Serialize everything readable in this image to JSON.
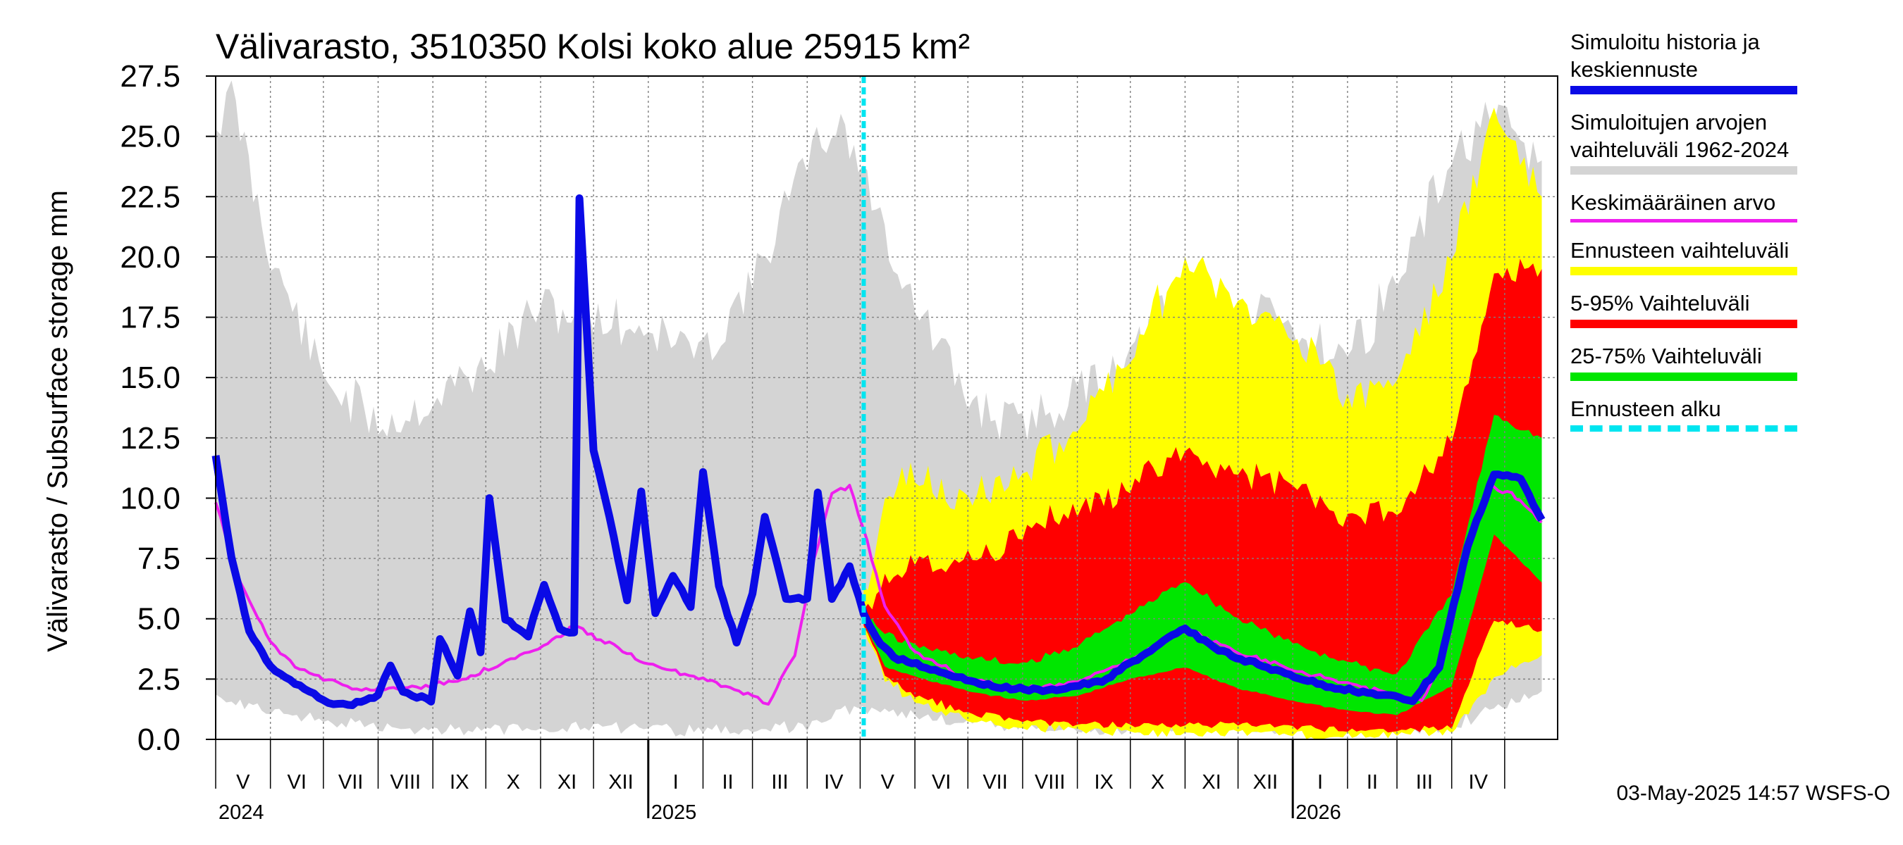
{
  "chart_data": {
    "type": "area",
    "title": "Välivarasto, 3510350 Kolsi koko alue 25915 km²",
    "ylabel": "Välivarasto / Subsurface storage  mm",
    "ylim": [
      0.0,
      27.5
    ],
    "yticks": [
      "0.0",
      "2.5",
      "5.0",
      "7.5",
      "10.0",
      "12.5",
      "15.0",
      "17.5",
      "20.0",
      "22.5",
      "25.0",
      "27.5"
    ],
    "x_range": [
      "2024-05-01",
      "2026-05-31"
    ],
    "forecast_start": "2025-05-03",
    "month_labels": [
      "V",
      "VI",
      "VII",
      "VIII",
      "IX",
      "X",
      "XI",
      "XII",
      "I",
      "II",
      "III",
      "IV",
      "V",
      "VI",
      "VII",
      "VIII",
      "IX",
      "X",
      "XI",
      "XII",
      "I",
      "II",
      "III",
      "IV"
    ],
    "year_labels": [
      {
        "date": "2024-05-01",
        "label": "2024"
      },
      {
        "date": "2025-01-01",
        "label": "2025"
      },
      {
        "date": "2026-01-01",
        "label": "2026"
      }
    ],
    "grid": true,
    "legend_position": "right",
    "colors": {
      "history": "#0a0ae6",
      "range_hist": "#d4d4d4",
      "mean": "#ee1fee",
      "forecast_range": "#ffff00",
      "p5_95": "#ff0000",
      "p25_75": "#00e600",
      "forecast_start": "#00e5f0"
    },
    "series": [
      {
        "name": "Simuloitu historia ja keskiennuste",
        "key": "history",
        "points": [
          [
            "2024-05-01",
            11.8
          ],
          [
            "2024-05-10",
            7.5
          ],
          [
            "2024-05-20",
            4.5
          ],
          [
            "2024-06-01",
            3.0
          ],
          [
            "2024-06-15",
            2.3
          ],
          [
            "2024-07-01",
            1.6
          ],
          [
            "2024-07-15",
            1.4
          ],
          [
            "2024-08-01",
            1.8
          ],
          [
            "2024-08-08",
            3.1
          ],
          [
            "2024-08-15",
            2.0
          ],
          [
            "2024-08-31",
            1.6
          ],
          [
            "2024-09-05",
            4.2
          ],
          [
            "2024-09-15",
            2.6
          ],
          [
            "2024-09-22",
            5.3
          ],
          [
            "2024-09-28",
            3.6
          ],
          [
            "2024-10-03",
            10.0
          ],
          [
            "2024-10-12",
            5.0
          ],
          [
            "2024-10-25",
            4.3
          ],
          [
            "2024-11-03",
            6.4
          ],
          [
            "2024-11-12",
            4.6
          ],
          [
            "2024-11-20",
            4.4
          ],
          [
            "2024-11-23",
            22.4
          ],
          [
            "2024-12-01",
            12.0
          ],
          [
            "2024-12-10",
            9.2
          ],
          [
            "2024-12-20",
            5.8
          ],
          [
            "2024-12-28",
            10.3
          ],
          [
            "2025-01-05",
            5.2
          ],
          [
            "2025-01-15",
            6.8
          ],
          [
            "2025-01-25",
            5.5
          ],
          [
            "2025-02-01",
            11.1
          ],
          [
            "2025-02-10",
            6.4
          ],
          [
            "2025-02-20",
            4.0
          ],
          [
            "2025-03-01",
            6.0
          ],
          [
            "2025-03-08",
            9.2
          ],
          [
            "2025-03-20",
            5.8
          ],
          [
            "2025-04-01",
            5.8
          ],
          [
            "2025-04-07",
            10.2
          ],
          [
            "2025-04-15",
            5.8
          ],
          [
            "2025-04-25",
            7.2
          ],
          [
            "2025-05-03",
            5.2
          ],
          [
            "2025-05-10",
            4.2
          ],
          [
            "2025-05-20",
            3.4
          ],
          [
            "2025-06-15",
            2.8
          ],
          [
            "2025-07-15",
            2.2
          ],
          [
            "2025-08-15",
            2.0
          ],
          [
            "2025-09-15",
            2.4
          ],
          [
            "2025-10-15",
            3.8
          ],
          [
            "2025-11-01",
            4.6
          ],
          [
            "2025-11-20",
            3.7
          ],
          [
            "2025-12-20",
            2.9
          ],
          [
            "2026-01-20",
            2.2
          ],
          [
            "2026-02-15",
            1.9
          ],
          [
            "2026-03-10",
            1.6
          ],
          [
            "2026-03-25",
            3.0
          ],
          [
            "2026-04-10",
            8.0
          ],
          [
            "2026-04-25",
            11.0
          ],
          [
            "2026-05-10",
            10.8
          ],
          [
            "2026-05-22",
            9.1
          ]
        ]
      },
      {
        "name": "Simuloitujen arvojen vaihteluväli 1962-2024",
        "key": "range_hist",
        "points": [
          [
            "2024-05-01",
            2.0,
            25.5
          ],
          [
            "2024-05-10",
            1.6,
            26.8
          ],
          [
            "2024-06-01",
            1.2,
            20.0
          ],
          [
            "2024-07-01",
            0.8,
            15.0
          ],
          [
            "2024-08-01",
            0.5,
            13.0
          ],
          [
            "2024-09-01",
            0.4,
            14.0
          ],
          [
            "2024-10-01",
            0.4,
            15.5
          ],
          [
            "2024-11-01",
            0.5,
            18.0
          ],
          [
            "2024-12-01",
            0.5,
            17.5
          ],
          [
            "2025-01-01",
            0.4,
            17.0
          ],
          [
            "2025-02-01",
            0.4,
            16.0
          ],
          [
            "2025-03-01",
            0.4,
            19.0
          ],
          [
            "2025-04-01",
            0.5,
            24.0
          ],
          [
            "2025-04-20",
            1.2,
            25.8
          ],
          [
            "2025-05-10",
            1.3,
            22.0
          ],
          [
            "2025-06-01",
            1.0,
            18.0
          ],
          [
            "2025-07-01",
            0.7,
            14.0
          ],
          [
            "2025-08-01",
            0.5,
            13.0
          ],
          [
            "2025-09-01",
            0.4,
            14.5
          ],
          [
            "2025-10-01",
            0.4,
            16.0
          ],
          [
            "2025-11-01",
            0.5,
            18.5
          ],
          [
            "2025-12-01",
            0.5,
            17.5
          ],
          [
            "2026-01-01",
            0.4,
            17.0
          ],
          [
            "2026-02-01",
            0.4,
            16.0
          ],
          [
            "2026-03-01",
            0.4,
            19.0
          ],
          [
            "2026-04-01",
            0.5,
            24.0
          ],
          [
            "2026-04-20",
            1.2,
            25.8
          ],
          [
            "2026-05-22",
            2.0,
            24.0
          ]
        ]
      },
      {
        "name": "Keskimääräinen arvo",
        "key": "mean",
        "points": [
          [
            "2024-05-01",
            9.8
          ],
          [
            "2024-05-15",
            6.5
          ],
          [
            "2024-06-01",
            4.0
          ],
          [
            "2024-06-15",
            3.0
          ],
          [
            "2024-07-01",
            2.5
          ],
          [
            "2024-07-20",
            2.1
          ],
          [
            "2024-08-15",
            2.1
          ],
          [
            "2024-09-15",
            2.4
          ],
          [
            "2024-10-15",
            3.3
          ],
          [
            "2024-11-05",
            4.0
          ],
          [
            "2024-11-20",
            4.7
          ],
          [
            "2024-12-15",
            3.8
          ],
          [
            "2025-01-01",
            3.1
          ],
          [
            "2025-02-01",
            2.5
          ],
          [
            "2025-03-01",
            1.8
          ],
          [
            "2025-03-10",
            1.5
          ],
          [
            "2025-03-25",
            3.5
          ],
          [
            "2025-04-05",
            7.5
          ],
          [
            "2025-04-15",
            10.2
          ],
          [
            "2025-04-25",
            10.5
          ],
          [
            "2025-05-05",
            8.2
          ],
          [
            "2025-05-15",
            5.5
          ],
          [
            "2025-06-01",
            3.6
          ],
          [
            "2025-07-01",
            2.5
          ],
          [
            "2025-08-01",
            2.1
          ],
          [
            "2025-09-01",
            2.4
          ],
          [
            "2025-10-01",
            3.3
          ],
          [
            "2025-11-01",
            4.6
          ],
          [
            "2025-12-01",
            3.6
          ],
          [
            "2026-01-01",
            2.9
          ],
          [
            "2026-02-01",
            2.3
          ],
          [
            "2026-03-01",
            1.8
          ],
          [
            "2026-03-15",
            1.6
          ],
          [
            "2026-03-28",
            3.5
          ],
          [
            "2026-04-10",
            7.8
          ],
          [
            "2026-04-22",
            10.5
          ],
          [
            "2026-05-05",
            10.2
          ],
          [
            "2026-05-22",
            9.0
          ]
        ]
      },
      {
        "name": "Ennusteen vaihteluväli",
        "key": "forecast_range",
        "points": [
          [
            "2025-05-03",
            4.6,
            6.0
          ],
          [
            "2025-05-15",
            2.5,
            10.0
          ],
          [
            "2025-06-01",
            1.6,
            11.0
          ],
          [
            "2025-07-01",
            0.8,
            10.0
          ],
          [
            "2025-08-01",
            0.5,
            11.0
          ],
          [
            "2025-09-01",
            0.4,
            13.0
          ],
          [
            "2025-10-01",
            0.3,
            16.0
          ],
          [
            "2025-11-01",
            0.3,
            20.0
          ],
          [
            "2025-12-01",
            0.3,
            18.0
          ],
          [
            "2026-01-01",
            0.2,
            17.0
          ],
          [
            "2026-02-01",
            0.2,
            14.0
          ],
          [
            "2026-03-01",
            0.2,
            15.0
          ],
          [
            "2026-04-01",
            0.3,
            20.0
          ],
          [
            "2026-04-25",
            2.5,
            26.0
          ],
          [
            "2026-05-22",
            3.5,
            22.5
          ]
        ]
      },
      {
        "name": "5-95% Vaihteluväli",
        "key": "p5_95",
        "points": [
          [
            "2025-05-03",
            4.8,
            5.5
          ],
          [
            "2025-05-15",
            2.7,
            6.8
          ],
          [
            "2025-06-01",
            1.8,
            7.5
          ],
          [
            "2025-07-01",
            1.1,
            7.5
          ],
          [
            "2025-08-01",
            0.8,
            8.5
          ],
          [
            "2025-09-01",
            0.6,
            9.5
          ],
          [
            "2025-10-01",
            0.6,
            10.5
          ],
          [
            "2025-11-01",
            0.6,
            12.0
          ],
          [
            "2025-12-01",
            0.6,
            11.0
          ],
          [
            "2026-01-01",
            0.5,
            10.5
          ],
          [
            "2026-02-01",
            0.4,
            9.0
          ],
          [
            "2026-03-01",
            0.4,
            9.5
          ],
          [
            "2026-04-01",
            0.5,
            12.5
          ],
          [
            "2026-04-25",
            5.0,
            19.0
          ],
          [
            "2026-05-22",
            4.5,
            19.5
          ]
        ]
      },
      {
        "name": "25-75% Vaihteluväli",
        "key": "p25_75",
        "points": [
          [
            "2025-05-03",
            4.9,
            5.2
          ],
          [
            "2025-05-15",
            3.0,
            4.4
          ],
          [
            "2025-06-01",
            2.6,
            3.9
          ],
          [
            "2025-07-01",
            2.0,
            3.4
          ],
          [
            "2025-08-01",
            1.6,
            3.1
          ],
          [
            "2025-09-01",
            1.8,
            3.9
          ],
          [
            "2025-10-01",
            2.5,
            5.2
          ],
          [
            "2025-11-01",
            3.0,
            6.6
          ],
          [
            "2025-12-01",
            2.1,
            5.0
          ],
          [
            "2026-01-01",
            1.6,
            4.0
          ],
          [
            "2026-02-01",
            1.2,
            3.2
          ],
          [
            "2026-03-01",
            1.0,
            2.7
          ],
          [
            "2026-04-01",
            2.2,
            6.0
          ],
          [
            "2026-04-25",
            8.5,
            13.5
          ],
          [
            "2026-05-22",
            6.5,
            12.5
          ]
        ]
      }
    ]
  },
  "legend": [
    {
      "key": "history",
      "label": "Simuloitu historia ja\nkeskiennuste",
      "color": "#0a0ae6",
      "style": "solid"
    },
    {
      "key": "range_hist",
      "label": "Simuloitujen arvojen\nvaihteluväli 1962-2024",
      "color": "#d4d4d4",
      "style": "solid"
    },
    {
      "key": "mean",
      "label": "Keskimääräinen arvo",
      "color": "#ee1fee",
      "style": "thin"
    },
    {
      "key": "forecast_range",
      "label": "Ennusteen vaihteluväli",
      "color": "#ffff00",
      "style": "solid"
    },
    {
      "key": "p5_95",
      "label": "5-95% Vaihteluväli",
      "color": "#ff0000",
      "style": "solid"
    },
    {
      "key": "p25_75",
      "label": "25-75% Vaihteluväli",
      "color": "#00e600",
      "style": "solid"
    },
    {
      "key": "forecast_start",
      "label": "Ennusteen alku",
      "color": "#00e5f0",
      "style": "dashed"
    }
  ],
  "footer": "03-May-2025 14:57 WSFS-O"
}
